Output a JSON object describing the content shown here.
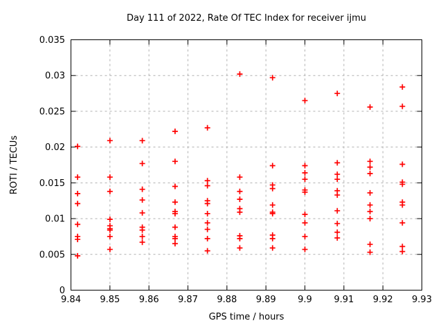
{
  "chart_data": {
    "type": "scatter",
    "title": "Day 111 of 2022, Rate Of TEC Index for receiver ijmu",
    "xlabel": "GPS time / hours",
    "ylabel": "ROTI / TECUs",
    "xlim": [
      9.84,
      9.93
    ],
    "ylim": [
      0,
      0.035
    ],
    "x_ticks": [
      9.84,
      9.85,
      9.86,
      9.87,
      9.88,
      9.89,
      9.9,
      9.91,
      9.92,
      9.93
    ],
    "x_tick_labels": [
      "9.84",
      "9.85",
      "9.86",
      "9.87",
      "9.88",
      "9.89",
      "9.9",
      "9.91",
      "9.92",
      "9.93"
    ],
    "y_ticks": [
      0,
      0.005,
      0.01,
      0.015,
      0.02,
      0.025,
      0.03,
      0.035
    ],
    "y_tick_labels": [
      "0",
      "0.005",
      "0.01",
      "0.015",
      "0.02",
      "0.025",
      "0.03",
      "0.035"
    ],
    "grid": true,
    "legend": "none",
    "marker": "plus",
    "marker_color": "#ff0000",
    "grid_color": "#b0b0b0",
    "border_color": "#000000",
    "series": [
      {
        "name": "ROTI",
        "points": [
          [
            9.8417,
            0.0201
          ],
          [
            9.8417,
            0.0158
          ],
          [
            9.8417,
            0.0135
          ],
          [
            9.8417,
            0.0121
          ],
          [
            9.8417,
            0.0092
          ],
          [
            9.8417,
            0.0075
          ],
          [
            9.8417,
            0.0071
          ],
          [
            9.8417,
            0.0048
          ],
          [
            9.85,
            0.0209
          ],
          [
            9.85,
            0.0158
          ],
          [
            9.85,
            0.0138
          ],
          [
            9.85,
            0.0099
          ],
          [
            9.85,
            0.009
          ],
          [
            9.85,
            0.0086
          ],
          [
            9.85,
            0.0084
          ],
          [
            9.85,
            0.0075
          ],
          [
            9.85,
            0.0057
          ],
          [
            9.8583,
            0.0209
          ],
          [
            9.8583,
            0.0177
          ],
          [
            9.8583,
            0.0141
          ],
          [
            9.8583,
            0.0126
          ],
          [
            9.8583,
            0.0108
          ],
          [
            9.8583,
            0.0088
          ],
          [
            9.8583,
            0.0084
          ],
          [
            9.8583,
            0.0075
          ],
          [
            9.8583,
            0.0067
          ],
          [
            9.8667,
            0.0222
          ],
          [
            9.8667,
            0.018
          ],
          [
            9.8667,
            0.0145
          ],
          [
            9.8667,
            0.0123
          ],
          [
            9.8667,
            0.011
          ],
          [
            9.8667,
            0.0107
          ],
          [
            9.8667,
            0.0088
          ],
          [
            9.8667,
            0.0075
          ],
          [
            9.8667,
            0.0072
          ],
          [
            9.8667,
            0.0065
          ],
          [
            9.875,
            0.0227
          ],
          [
            9.875,
            0.0153
          ],
          [
            9.875,
            0.0146
          ],
          [
            9.875,
            0.0125
          ],
          [
            9.875,
            0.0121
          ],
          [
            9.875,
            0.0107
          ],
          [
            9.875,
            0.0094
          ],
          [
            9.875,
            0.0085
          ],
          [
            9.875,
            0.0072
          ],
          [
            9.875,
            0.0055
          ],
          [
            9.8833,
            0.0302
          ],
          [
            9.8833,
            0.0158
          ],
          [
            9.8833,
            0.0138
          ],
          [
            9.8833,
            0.0127
          ],
          [
            9.8833,
            0.0114
          ],
          [
            9.8833,
            0.0109
          ],
          [
            9.8833,
            0.0076
          ],
          [
            9.8833,
            0.0072
          ],
          [
            9.8833,
            0.0059
          ],
          [
            9.8917,
            0.0297
          ],
          [
            9.8917,
            0.0174
          ],
          [
            9.8917,
            0.0147
          ],
          [
            9.8917,
            0.0142
          ],
          [
            9.8917,
            0.0119
          ],
          [
            9.8917,
            0.0109
          ],
          [
            9.8917,
            0.0107
          ],
          [
            9.8917,
            0.0077
          ],
          [
            9.8917,
            0.0072
          ],
          [
            9.8917,
            0.0059
          ],
          [
            9.9,
            0.0265
          ],
          [
            9.9,
            0.0174
          ],
          [
            9.9,
            0.0164
          ],
          [
            9.9,
            0.0155
          ],
          [
            9.9,
            0.014
          ],
          [
            9.9,
            0.0137
          ],
          [
            9.9,
            0.0106
          ],
          [
            9.9,
            0.0094
          ],
          [
            9.9,
            0.0075
          ],
          [
            9.9,
            0.0057
          ],
          [
            9.9083,
            0.0275
          ],
          [
            9.9083,
            0.0178
          ],
          [
            9.9083,
            0.0162
          ],
          [
            9.9083,
            0.0155
          ],
          [
            9.9083,
            0.0139
          ],
          [
            9.9083,
            0.0133
          ],
          [
            9.9083,
            0.0111
          ],
          [
            9.9083,
            0.0093
          ],
          [
            9.9083,
            0.0081
          ],
          [
            9.9083,
            0.0073
          ],
          [
            9.9167,
            0.0256
          ],
          [
            9.9167,
            0.018
          ],
          [
            9.9167,
            0.0172
          ],
          [
            9.9167,
            0.0163
          ],
          [
            9.9167,
            0.0136
          ],
          [
            9.9167,
            0.0119
          ],
          [
            9.9167,
            0.011
          ],
          [
            9.9167,
            0.01
          ],
          [
            9.9167,
            0.0064
          ],
          [
            9.9167,
            0.0053
          ],
          [
            9.925,
            0.0284
          ],
          [
            9.925,
            0.0257
          ],
          [
            9.925,
            0.0176
          ],
          [
            9.925,
            0.0151
          ],
          [
            9.925,
            0.0148
          ],
          [
            9.925,
            0.0123
          ],
          [
            9.925,
            0.0119
          ],
          [
            9.925,
            0.0094
          ],
          [
            9.925,
            0.0061
          ],
          [
            9.925,
            0.0054
          ]
        ]
      }
    ]
  }
}
